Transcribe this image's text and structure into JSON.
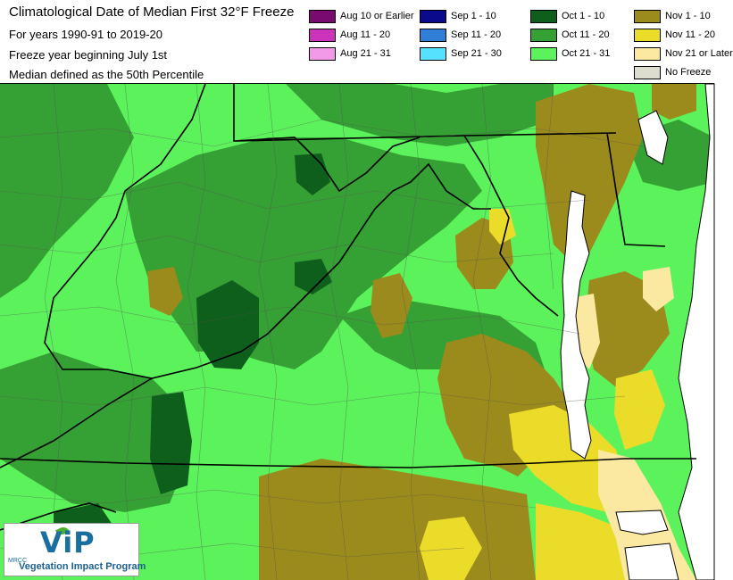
{
  "header": {
    "title": "Climatological Date of Median First 32°F Freeze",
    "lines": [
      "For years 1990-91 to 2019-20",
      "Freeze year beginning July 1st",
      "Median defined as the 50th Percentile"
    ]
  },
  "legend": [
    {
      "label": "Aug 10 or Earlier",
      "color": "#7a0b6e"
    },
    {
      "label": "Aug 11 - 20",
      "color": "#cc33bb"
    },
    {
      "label": "Aug 21 - 31",
      "color": "#f29ae8"
    },
    {
      "label": "Sep 1 - 10",
      "color": "#0a0a8c"
    },
    {
      "label": "Sep 11 - 20",
      "color": "#2f7fd6"
    },
    {
      "label": "Sep 21 - 30",
      "color": "#55e1ff"
    },
    {
      "label": "Oct 1 - 10",
      "color": "#0e5e1c"
    },
    {
      "label": "Oct 11 - 20",
      "color": "#35a033"
    },
    {
      "label": "Oct 21 - 31",
      "color": "#5cf25c"
    },
    {
      "label": "Nov 1 - 10",
      "color": "#9b8a1c"
    },
    {
      "label": "Nov 11 - 20",
      "color": "#ecdc2a"
    },
    {
      "label": "Nov 21 or Later",
      "color": "#fbe9a2"
    },
    {
      "label": "No Freeze",
      "color": "#dcdccf"
    }
  ],
  "map": {
    "water_color": "#ffffff",
    "boundary_color": "#000000"
  },
  "logo": {
    "mark": "ViP",
    "org": "MRCC",
    "name": "Vegetation Impact Program"
  }
}
